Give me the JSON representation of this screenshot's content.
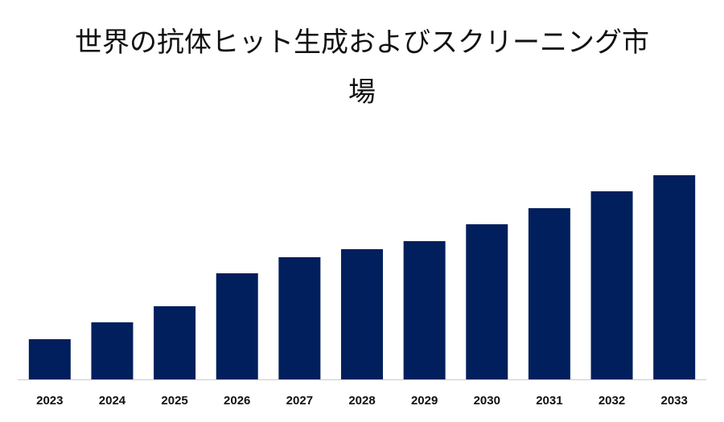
{
  "chart_data": {
    "type": "bar",
    "title": "世界の抗体ヒット生成およびスクリーニング市場",
    "categories": [
      "2023",
      "2024",
      "2025",
      "2026",
      "2027",
      "2028",
      "2029",
      "2030",
      "2031",
      "2032",
      "2033"
    ],
    "values": [
      50,
      71,
      91,
      132,
      152,
      162,
      172,
      193,
      213,
      234,
      254
    ],
    "color": "#001f5c"
  }
}
